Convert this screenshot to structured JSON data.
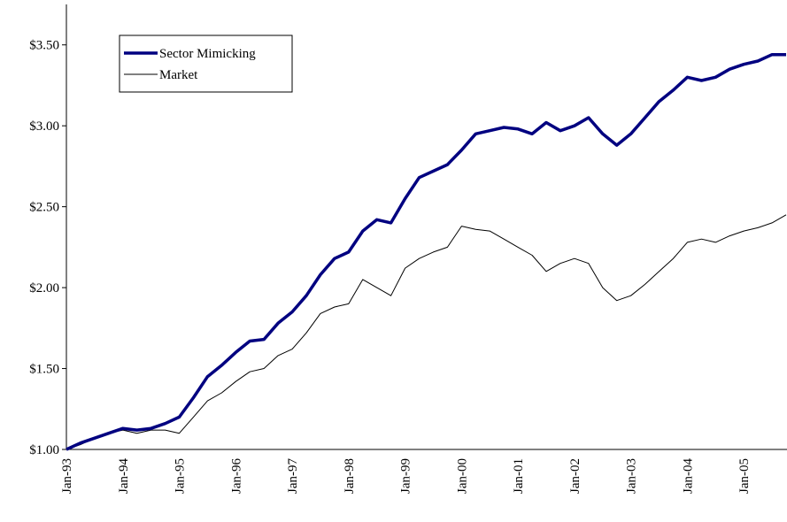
{
  "chart_data": {
    "type": "line",
    "categories": [
      "Jan-93",
      null,
      null,
      null,
      "Jan-94",
      null,
      null,
      null,
      "Jan-95",
      null,
      null,
      null,
      "Jan-96",
      null,
      null,
      null,
      "Jan-97",
      null,
      null,
      null,
      "Jan-98",
      null,
      null,
      null,
      "Jan-99",
      null,
      null,
      null,
      "Jan-00",
      null,
      null,
      null,
      "Jan-01",
      null,
      null,
      null,
      "Jan-02",
      null,
      null,
      null,
      "Jan-03",
      null,
      null,
      null,
      "Jan-04",
      null,
      null,
      null,
      "Jan-05",
      null,
      null,
      null
    ],
    "series": [
      {
        "name": "Sector Mimicking",
        "color": "#000080",
        "width": 3.5,
        "values": [
          1.0,
          1.04,
          1.07,
          1.1,
          1.13,
          1.12,
          1.13,
          1.16,
          1.2,
          1.32,
          1.45,
          1.52,
          1.6,
          1.67,
          1.68,
          1.78,
          1.85,
          1.95,
          2.08,
          2.18,
          2.22,
          2.35,
          2.42,
          2.4,
          2.55,
          2.68,
          2.72,
          2.76,
          2.85,
          2.95,
          2.97,
          2.99,
          2.98,
          2.95,
          3.02,
          2.97,
          3.0,
          3.05,
          2.95,
          2.88,
          2.95,
          3.05,
          3.15,
          3.22,
          3.3,
          3.28,
          3.3,
          3.35,
          3.38,
          3.4,
          3.44,
          3.44
        ]
      },
      {
        "name": "Market",
        "color": "#000000",
        "width": 1,
        "values": [
          1.0,
          1.03,
          1.07,
          1.1,
          1.12,
          1.1,
          1.12,
          1.12,
          1.1,
          1.2,
          1.3,
          1.35,
          1.42,
          1.48,
          1.5,
          1.58,
          1.62,
          1.72,
          1.84,
          1.88,
          1.9,
          2.05,
          2.0,
          1.95,
          2.12,
          2.18,
          2.22,
          2.25,
          2.38,
          2.36,
          2.35,
          2.3,
          2.25,
          2.2,
          2.1,
          2.15,
          2.18,
          2.15,
          2.0,
          1.92,
          1.95,
          2.02,
          2.1,
          2.18,
          2.28,
          2.3,
          2.28,
          2.32,
          2.35,
          2.37,
          2.4,
          2.45
        ]
      }
    ],
    "ylim": [
      1,
      3.75
    ],
    "yticks": [
      {
        "value": 1,
        "label": "$1.00"
      },
      {
        "value": 1.5,
        "label": "$1.50"
      },
      {
        "value": 2,
        "label": "$2.00"
      },
      {
        "value": 2.5,
        "label": "$2.50"
      },
      {
        "value": 3,
        "label": "$3.00"
      },
      {
        "value": 3.5,
        "label": "$3.50"
      }
    ],
    "grid": false
  }
}
